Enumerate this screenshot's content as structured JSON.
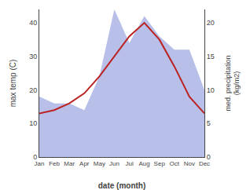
{
  "chart_data": {
    "type": "line",
    "categories": [
      "Jan",
      "Feb",
      "Mar",
      "Apr",
      "May",
      "Jun",
      "Jul",
      "Aug",
      "Sep",
      "Oct",
      "Nov",
      "Dec"
    ],
    "series": [
      {
        "type": "area",
        "axis": "y2",
        "color": "#b8bfe8",
        "values": [
          9,
          8,
          8,
          7,
          12,
          22,
          17,
          21,
          18,
          16,
          16,
          10
        ]
      },
      {
        "type": "line",
        "color": "#bb2222",
        "values": [
          13,
          14,
          16,
          19,
          24,
          30,
          36,
          40,
          35,
          27,
          18,
          13
        ]
      }
    ],
    "xlabel": "date (month)",
    "ylabel": "max temp (C)",
    "y2label": "med. precipitation\n(kg/m2)",
    "ylim": [
      0,
      44
    ],
    "yticks": [
      0,
      10,
      20,
      30,
      40
    ],
    "y2lim": [
      0,
      22
    ],
    "y2ticks": [
      0,
      5,
      10,
      15,
      20
    ],
    "grid": false
  }
}
